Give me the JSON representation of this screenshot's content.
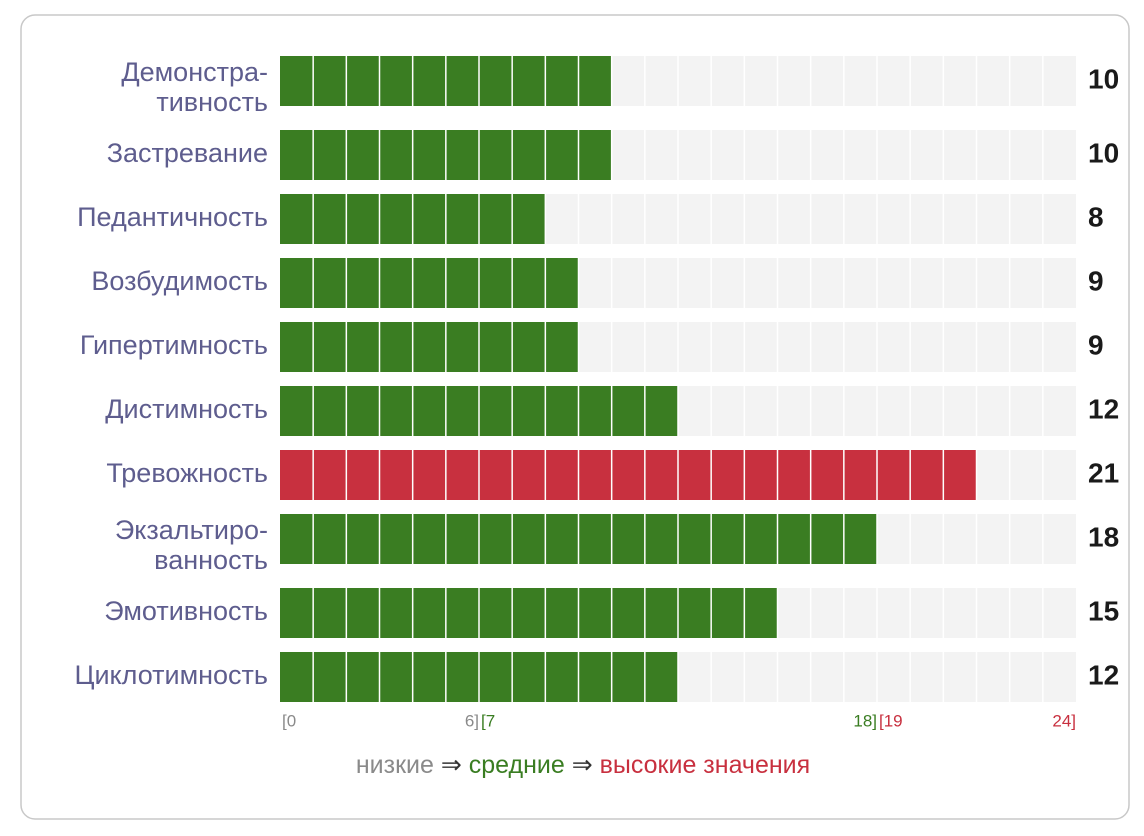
{
  "chart_data": {
    "type": "bar",
    "categories": [
      [
        "Демонстра-",
        "тивность"
      ],
      [
        "Застревание"
      ],
      [
        "Педантичность"
      ],
      [
        "Возбудимость"
      ],
      [
        "Гипертимность"
      ],
      [
        "Дистимность"
      ],
      [
        "Тревожность"
      ],
      [
        "Экзальтиро-",
        "ванность"
      ],
      [
        "Эмотивность"
      ],
      [
        "Циклотимность"
      ]
    ],
    "values": [
      10,
      10,
      8,
      9,
      9,
      12,
      21,
      18,
      15,
      12
    ],
    "xlim": [
      0,
      24
    ],
    "track_color": "#f3f3f3",
    "ranges": [
      {
        "name": "низкие",
        "from": 0,
        "to": 6,
        "from_label": "[0",
        "to_label": "6]",
        "color": "#8a8a8a"
      },
      {
        "name": "средние",
        "from": 7,
        "to": 18,
        "from_label": "[7",
        "to_label": "18]",
        "color": "#3a7d22"
      },
      {
        "name": "высокие значения",
        "from": 19,
        "to": 24,
        "from_label": "[19",
        "to_label": "24]",
        "color": "#c8303f"
      }
    ],
    "legend_separator": "⇒"
  }
}
